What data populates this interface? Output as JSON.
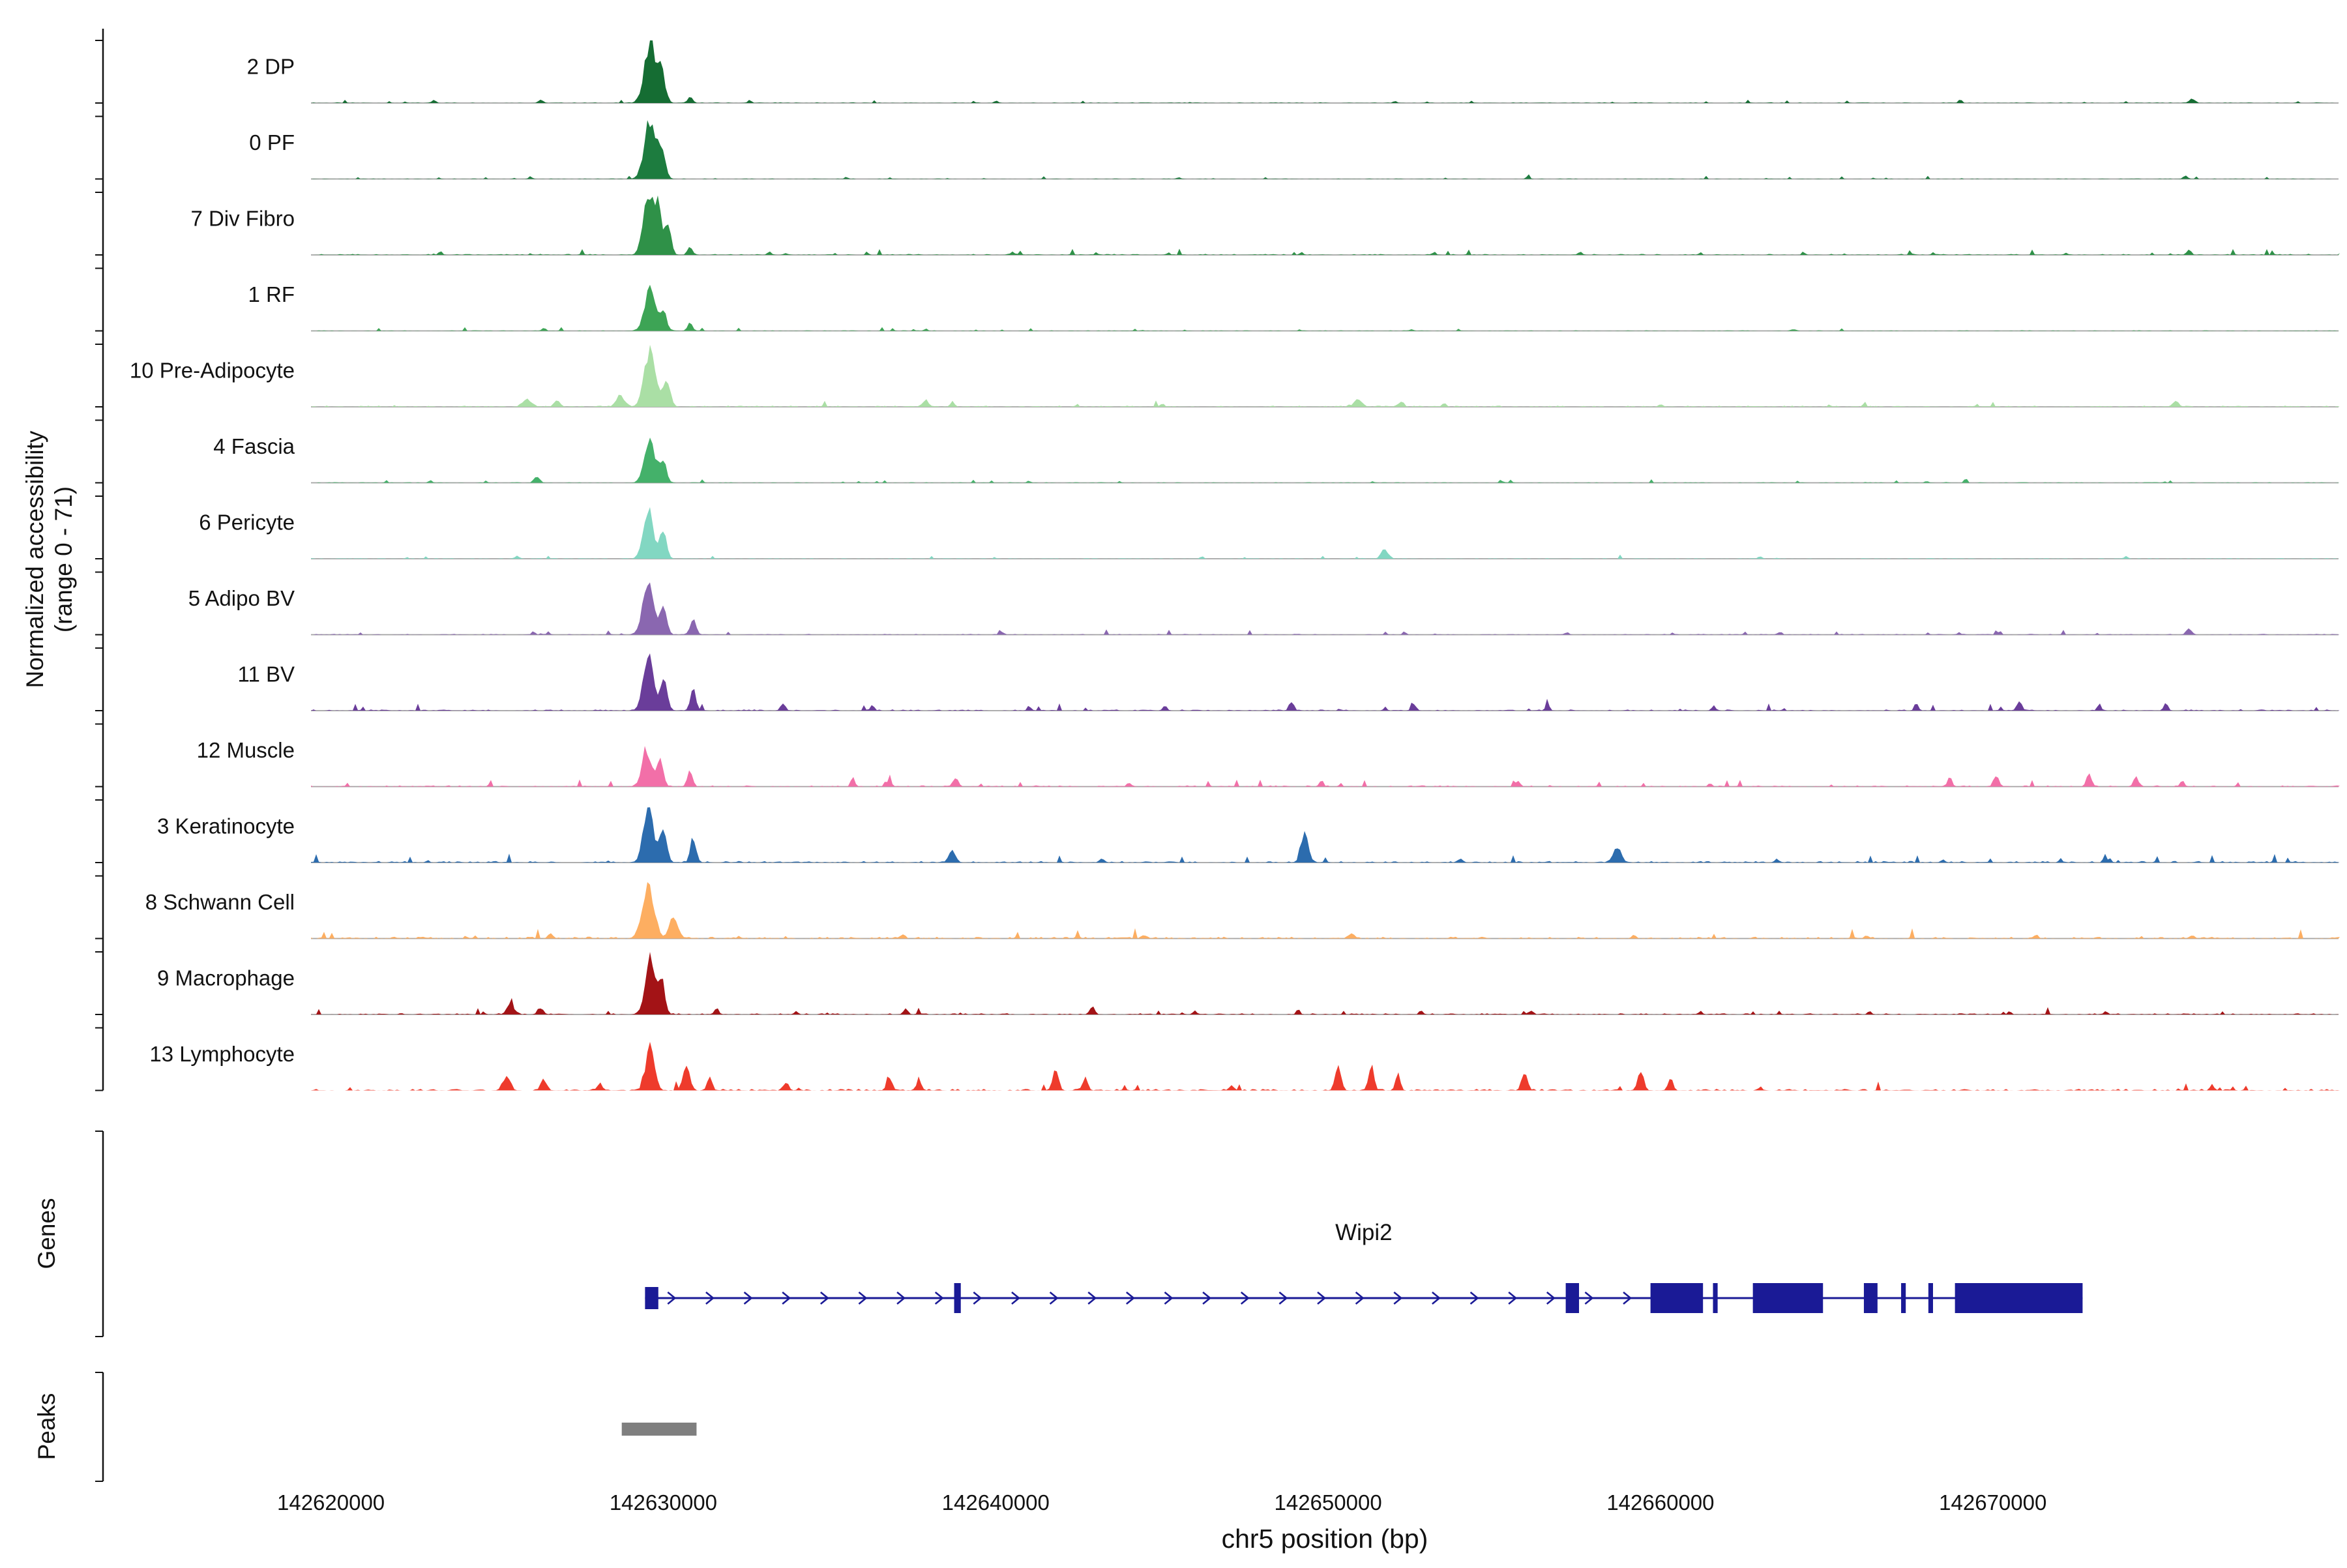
{
  "figure": {
    "y_axis_label_line1": "Normalized accessibility",
    "y_axis_label_line2": "(range 0 - 71)",
    "x_axis_label": "chr5 position (bp)",
    "genes_section_label": "Genes",
    "peaks_section_label": "Peaks"
  },
  "chart_data": {
    "type": "area",
    "description": "Genome browser accessibility tracks (ATAC pseudo-bulk) for 14 cell clusters at the Wipi2 locus, with gene model and called peak region",
    "title": "",
    "xlabel": "chr5 position (bp)",
    "ylabel": "Normalized accessibility (range 0 - 71)",
    "region": {
      "chrom": "chr5",
      "bp_min": 142619400,
      "bp_max": 142680400
    },
    "y_range_per_track": [
      0,
      71
    ],
    "grid": "off",
    "legend": "none",
    "x_ticks": [
      "142620000",
      "142630000",
      "142640000",
      "142650000",
      "142660000",
      "142670000"
    ],
    "tracks": [
      {
        "label": "2 DP",
        "color": "#156d33",
        "noise": 0.018,
        "peaks": [
          [
            142629600,
            0.95,
            170
          ],
          [
            142629950,
            0.45,
            110
          ],
          [
            142630800,
            0.1,
            70
          ],
          [
            142623100,
            0.05,
            60
          ],
          [
            142626300,
            0.06,
            60
          ],
          [
            142632600,
            0.05,
            50
          ],
          [
            142640000,
            0.03,
            50
          ],
          [
            142652000,
            0.03,
            50
          ],
          [
            142676000,
            0.07,
            80
          ]
        ]
      },
      {
        "label": "0 PF",
        "color": "#1d7c3f",
        "noise": 0.015,
        "peaks": [
          [
            142629600,
            0.92,
            170
          ],
          [
            142629950,
            0.42,
            110
          ],
          [
            142626000,
            0.04,
            50
          ],
          [
            142635500,
            0.03,
            50
          ],
          [
            142645500,
            0.03,
            50
          ],
          [
            142656000,
            0.03,
            50
          ],
          [
            142675800,
            0.05,
            70
          ]
        ]
      },
      {
        "label": "7 Div Fibro",
        "color": "#2f9148",
        "noise": 0.03,
        "peaks": [
          [
            142629550,
            0.97,
            150
          ],
          [
            142629850,
            0.75,
            110
          ],
          [
            142630150,
            0.45,
            90
          ],
          [
            142630800,
            0.15,
            70
          ],
          [
            142623300,
            0.06,
            50
          ],
          [
            142633200,
            0.05,
            50
          ],
          [
            142640500,
            0.05,
            55
          ],
          [
            142645200,
            0.04,
            50
          ],
          [
            142649200,
            0.05,
            55
          ],
          [
            142653200,
            0.05,
            50
          ],
          [
            142657600,
            0.05,
            50
          ],
          [
            142661200,
            0.04,
            50
          ],
          [
            142664300,
            0.04,
            50
          ],
          [
            142668200,
            0.04,
            50
          ],
          [
            142672200,
            0.04,
            50
          ],
          [
            142675900,
            0.08,
            70
          ]
        ]
      },
      {
        "label": "1 RF",
        "color": "#3da455",
        "noise": 0.018,
        "peaks": [
          [
            142629600,
            0.66,
            160
          ],
          [
            142630000,
            0.3,
            100
          ],
          [
            142630800,
            0.12,
            70
          ],
          [
            142626400,
            0.05,
            55
          ],
          [
            142637900,
            0.04,
            50
          ],
          [
            142652500,
            0.03,
            50
          ],
          [
            142664000,
            0.03,
            50
          ]
        ]
      },
      {
        "label": "10 Pre-Adipocyte",
        "color": "#aadfa5",
        "noise": 0.035,
        "peaks": [
          [
            142629600,
            0.9,
            170
          ],
          [
            142630100,
            0.4,
            110
          ],
          [
            142628700,
            0.18,
            120
          ],
          [
            142625900,
            0.12,
            130
          ],
          [
            142626800,
            0.1,
            90
          ],
          [
            142637900,
            0.1,
            90
          ],
          [
            142638700,
            0.08,
            60
          ],
          [
            142650900,
            0.12,
            110
          ],
          [
            142652200,
            0.09,
            80
          ],
          [
            142653500,
            0.06,
            60
          ],
          [
            142645000,
            0.05,
            60
          ],
          [
            142660000,
            0.04,
            60
          ],
          [
            142675500,
            0.1,
            90
          ]
        ]
      },
      {
        "label": "4 Fascia",
        "color": "#44b16a",
        "noise": 0.018,
        "peaks": [
          [
            142629600,
            0.68,
            160
          ],
          [
            142630000,
            0.32,
            100
          ],
          [
            142626200,
            0.11,
            80
          ],
          [
            142623000,
            0.04,
            50
          ],
          [
            142641000,
            0.03,
            50
          ],
          [
            142655200,
            0.04,
            50
          ],
          [
            142668000,
            0.03,
            50
          ]
        ]
      },
      {
        "label": "6 Pericyte",
        "color": "#82d7c2",
        "noise": 0.02,
        "peaks": [
          [
            142629550,
            0.78,
            150
          ],
          [
            142630000,
            0.45,
            100
          ],
          [
            142651700,
            0.16,
            100
          ],
          [
            142625600,
            0.05,
            60
          ],
          [
            142646200,
            0.04,
            55
          ],
          [
            142663000,
            0.04,
            55
          ],
          [
            142674000,
            0.04,
            55
          ]
        ]
      },
      {
        "label": "5 Adipo BV",
        "color": "#8a67b0",
        "noise": 0.025,
        "peaks": [
          [
            142629550,
            0.88,
            160
          ],
          [
            142630000,
            0.5,
            100
          ],
          [
            142630900,
            0.28,
            85
          ],
          [
            142626100,
            0.05,
            55
          ],
          [
            142640200,
            0.05,
            50
          ],
          [
            142652300,
            0.05,
            50
          ],
          [
            142657200,
            0.04,
            50
          ],
          [
            142663600,
            0.04,
            50
          ],
          [
            142670200,
            0.05,
            50
          ],
          [
            142675900,
            0.1,
            80
          ]
        ]
      },
      {
        "label": "11 BV",
        "color": "#6a3d9a",
        "noise": 0.035,
        "peaks": [
          [
            142629550,
            0.9,
            150
          ],
          [
            142630000,
            0.5,
            105
          ],
          [
            142630900,
            0.33,
            85
          ],
          [
            142633600,
            0.1,
            75
          ],
          [
            142636300,
            0.08,
            60
          ],
          [
            142641000,
            0.06,
            55
          ],
          [
            142645100,
            0.08,
            60
          ],
          [
            142648900,
            0.14,
            70
          ],
          [
            142652600,
            0.1,
            60
          ],
          [
            142656600,
            0.1,
            60
          ],
          [
            142661600,
            0.08,
            55
          ],
          [
            142667700,
            0.12,
            60
          ],
          [
            142670800,
            0.17,
            70
          ],
          [
            142673200,
            0.1,
            60
          ],
          [
            142675200,
            0.12,
            60
          ]
        ]
      },
      {
        "label": "12 Muscle",
        "color": "#f26fa8",
        "noise": 0.035,
        "peaks": [
          [
            142629500,
            0.55,
            140
          ],
          [
            142629900,
            0.4,
            100
          ],
          [
            142630800,
            0.25,
            80
          ],
          [
            142635700,
            0.14,
            60
          ],
          [
            142636800,
            0.11,
            60
          ],
          [
            142638800,
            0.16,
            70
          ],
          [
            142644000,
            0.06,
            55
          ],
          [
            142649800,
            0.11,
            60
          ],
          [
            142655700,
            0.09,
            60
          ],
          [
            142661500,
            0.06,
            55
          ],
          [
            142668700,
            0.14,
            70
          ],
          [
            142670100,
            0.17,
            80
          ],
          [
            142672900,
            0.19,
            80
          ],
          [
            142674300,
            0.17,
            70
          ],
          [
            142675700,
            0.11,
            60
          ]
        ]
      },
      {
        "label": "3 Keratinocyte",
        "color": "#2c6cae",
        "noise": 0.045,
        "peaks": [
          [
            142629550,
            0.88,
            150
          ],
          [
            142630000,
            0.55,
            105
          ],
          [
            142630900,
            0.4,
            85
          ],
          [
            142638700,
            0.2,
            90
          ],
          [
            142649300,
            0.5,
            110
          ],
          [
            142658700,
            0.24,
            120
          ],
          [
            142643200,
            0.07,
            60
          ],
          [
            142654000,
            0.06,
            60
          ],
          [
            142663500,
            0.06,
            60
          ],
          [
            142668500,
            0.05,
            60
          ],
          [
            142673500,
            0.05,
            60
          ]
        ]
      },
      {
        "label": "8 Schwann Cell",
        "color": "#fdae61",
        "noise": 0.05,
        "peaks": [
          [
            142629550,
            0.8,
            180
          ],
          [
            142630300,
            0.35,
            120
          ],
          [
            142626600,
            0.07,
            80
          ],
          [
            142637200,
            0.05,
            70
          ],
          [
            142644500,
            0.05,
            70
          ],
          [
            142650700,
            0.08,
            90
          ],
          [
            142659200,
            0.05,
            70
          ],
          [
            142666200,
            0.05,
            70
          ],
          [
            142671300,
            0.05,
            70
          ],
          [
            142676000,
            0.05,
            70
          ]
        ]
      },
      {
        "label": "9 Macrophage",
        "color": "#a31316",
        "noise": 0.035,
        "peaks": [
          [
            142629600,
            1.0,
            140
          ],
          [
            142629950,
            0.55,
            100
          ],
          [
            142625400,
            0.16,
            110
          ],
          [
            142626300,
            0.11,
            80
          ],
          [
            142631600,
            0.1,
            65
          ],
          [
            142634000,
            0.06,
            55
          ],
          [
            142637300,
            0.09,
            60
          ],
          [
            142642900,
            0.13,
            70
          ],
          [
            142646000,
            0.06,
            55
          ],
          [
            142649100,
            0.07,
            55
          ],
          [
            142652800,
            0.06,
            55
          ],
          [
            142656100,
            0.07,
            55
          ],
          [
            142661200,
            0.05,
            50
          ],
          [
            142666300,
            0.05,
            50
          ],
          [
            142670500,
            0.05,
            50
          ],
          [
            142673400,
            0.05,
            50
          ]
        ]
      },
      {
        "label": "13 Lymphocyte",
        "color": "#ee3b2c",
        "noise": 0.045,
        "peaks": [
          [
            142629600,
            0.72,
            130
          ],
          [
            142630700,
            0.42,
            95
          ],
          [
            142631400,
            0.22,
            70
          ],
          [
            142625300,
            0.22,
            100
          ],
          [
            142626400,
            0.18,
            85
          ],
          [
            142628100,
            0.1,
            70
          ],
          [
            142633700,
            0.14,
            70
          ],
          [
            142636800,
            0.2,
            80
          ],
          [
            142637700,
            0.16,
            70
          ],
          [
            142641800,
            0.32,
            85
          ],
          [
            142642700,
            0.22,
            70
          ],
          [
            142647100,
            0.09,
            60
          ],
          [
            142650300,
            0.38,
            85
          ],
          [
            142651300,
            0.42,
            80
          ],
          [
            142652100,
            0.28,
            70
          ],
          [
            142655900,
            0.28,
            80
          ],
          [
            142659400,
            0.33,
            85
          ],
          [
            142660300,
            0.22,
            70
          ],
          [
            142663000,
            0.06,
            55
          ],
          [
            142676600,
            0.09,
            60
          ]
        ]
      }
    ],
    "gene": {
      "name": "Wipi2",
      "strand": "+",
      "start": 142629450,
      "end": 142672700,
      "color": "#1a1a96",
      "exons": [
        {
          "start": 142629450,
          "end": 142629850,
          "height": "small"
        },
        {
          "start": 142638750,
          "end": 142638950,
          "height": "thin"
        },
        {
          "start": 142657150,
          "end": 142657550,
          "height": "thick"
        },
        {
          "start": 142659700,
          "end": 142661280,
          "height": "thick"
        },
        {
          "start": 142661580,
          "end": 142661720,
          "height": "thin"
        },
        {
          "start": 142662780,
          "end": 142664890,
          "height": "thick"
        },
        {
          "start": 142666120,
          "end": 142666530,
          "height": "thick"
        },
        {
          "start": 142667240,
          "end": 142667380,
          "height": "thin"
        },
        {
          "start": 142668060,
          "end": 142668200,
          "height": "thin"
        },
        {
          "start": 142668860,
          "end": 142672700,
          "height": "thick"
        }
      ]
    },
    "peak_regions": [
      {
        "start": 142628750,
        "end": 142631000,
        "color": "#7f7f7f"
      }
    ]
  }
}
